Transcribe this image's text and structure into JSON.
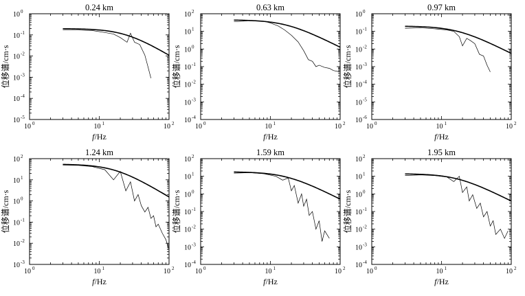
{
  "chart_data": [
    {
      "type": "line",
      "title": "0.24 km",
      "xlabel_var": "f",
      "xlabel_unit": "/Hz",
      "ylabel": "位移谱/cm·s",
      "xscale": "log",
      "yscale": "log",
      "xlim": [
        1,
        100
      ],
      "ylim": [
        1e-05,
        1
      ],
      "xticks": [
        1,
        10,
        100
      ],
      "yticks": [
        1e-05,
        0.0001,
        0.001,
        0.01,
        0.1,
        1
      ],
      "grid": false,
      "series": [
        {
          "role": "theoretical",
          "fc": 24,
          "omega0": 0.2,
          "x_range": [
            3,
            100
          ]
        },
        {
          "role": "observed",
          "x": [
            3,
            5,
            8,
            12,
            16,
            20,
            25,
            28,
            32,
            38,
            45,
            50,
            55
          ],
          "y": [
            0.17,
            0.17,
            0.16,
            0.13,
            0.11,
            0.075,
            0.045,
            0.12,
            0.045,
            0.035,
            0.011,
            0.003,
            0.0009
          ]
        }
      ]
    },
    {
      "type": "line",
      "title": "0.63 km",
      "xlabel_var": "f",
      "xlabel_unit": "/Hz",
      "ylabel": "位移谱/cm·s",
      "xscale": "log",
      "yscale": "log",
      "xlim": [
        1,
        100
      ],
      "ylim": [
        0.0001,
        100
      ],
      "xticks": [
        1,
        10,
        100
      ],
      "yticks": [
        0.0001,
        0.001,
        0.01,
        0.1,
        1,
        10,
        100
      ],
      "grid": false,
      "series": [
        {
          "role": "theoretical",
          "fc": 17,
          "omega0": 45,
          "x_range": [
            3,
            100
          ]
        },
        {
          "role": "observed",
          "x": [
            3,
            5,
            8,
            10,
            13,
            16,
            20,
            25,
            30,
            35,
            40,
            45,
            50,
            60,
            70,
            80,
            100
          ],
          "y": [
            35,
            40,
            38,
            30,
            20,
            12,
            6,
            2.5,
            0.8,
            0.25,
            0.2,
            0.1,
            0.12,
            0.09,
            0.08,
            0.06,
            0.05
          ]
        }
      ]
    },
    {
      "type": "line",
      "title": "0.97 km",
      "xlabel_var": "f",
      "xlabel_unit": "/Hz",
      "ylabel": "位移谱/cm·s",
      "xscale": "log",
      "yscale": "log",
      "xlim": [
        1,
        100
      ],
      "ylim": [
        1e-06,
        1
      ],
      "xticks": [
        1,
        10,
        100
      ],
      "yticks": [
        1e-06,
        1e-05,
        0.0001,
        0.001,
        0.01,
        0.1,
        1
      ],
      "grid": false,
      "series": [
        {
          "role": "theoretical",
          "fc": 17,
          "omega0": 0.2,
          "x_range": [
            3,
            100
          ]
        },
        {
          "role": "observed",
          "x": [
            3,
            5,
            8,
            12,
            15,
            18,
            20,
            23,
            26,
            30,
            35,
            40,
            45,
            50
          ],
          "y": [
            0.15,
            0.16,
            0.14,
            0.12,
            0.1,
            0.05,
            0.015,
            0.04,
            0.03,
            0.02,
            0.005,
            0.004,
            0.0012,
            0.0005
          ]
        }
      ]
    },
    {
      "type": "line",
      "title": "1.24 km",
      "xlabel_var": "f",
      "xlabel_unit": "/Hz",
      "ylabel": "位移谱/cm·s",
      "xscale": "log",
      "yscale": "log",
      "xlim": [
        1,
        100
      ],
      "ylim": [
        0.001,
        100
      ],
      "xticks": [
        1,
        10,
        100
      ],
      "yticks": [
        0.001,
        0.01,
        0.1,
        1,
        10,
        100
      ],
      "grid": false,
      "series": [
        {
          "role": "theoretical",
          "fc": 17,
          "omega0": 55,
          "x_range": [
            3,
            100
          ]
        },
        {
          "role": "observed",
          "x": [
            3,
            5,
            8,
            12,
            16,
            20,
            24,
            28,
            32,
            36,
            40,
            45,
            50,
            55,
            60,
            65,
            70,
            80,
            90,
            100
          ],
          "y": [
            50,
            48,
            42,
            30,
            10,
            25,
            3,
            8,
            1,
            2,
            0.6,
            0.3,
            0.5,
            0.15,
            0.2,
            0.06,
            0.08,
            0.03,
            0.015,
            0.005
          ]
        }
      ]
    },
    {
      "type": "line",
      "title": "1.59 km",
      "xlabel_var": "f",
      "xlabel_unit": "/Hz",
      "ylabel": "位移谱/cm·s",
      "xscale": "log",
      "yscale": "log",
      "xlim": [
        1,
        100
      ],
      "ylim": [
        0.0001,
        100
      ],
      "xticks": [
        1,
        10,
        100
      ],
      "yticks": [
        0.0001,
        0.001,
        0.01,
        0.1,
        1,
        10,
        100
      ],
      "grid": false,
      "series": [
        {
          "role": "theoretical",
          "fc": 17,
          "omega0": 18,
          "x_range": [
            3,
            100
          ]
        },
        {
          "role": "observed",
          "x": [
            3,
            5,
            8,
            12,
            15,
            18,
            20,
            22,
            25,
            28,
            30,
            33,
            36,
            40,
            45,
            50,
            55,
            60,
            70
          ],
          "y": [
            15,
            16,
            14,
            10,
            6,
            8,
            1.5,
            3,
            0.3,
            1,
            0.2,
            0.5,
            0.06,
            0.1,
            0.01,
            0.03,
            0.002,
            0.008,
            0.003
          ]
        }
      ]
    },
    {
      "type": "line",
      "title": "1.95 km",
      "xlabel_var": "f",
      "xlabel_unit": "/Hz",
      "ylabel": "位移谱/cm·s",
      "xscale": "log",
      "yscale": "log",
      "xlim": [
        1,
        100
      ],
      "ylim": [
        0.0001,
        100
      ],
      "xticks": [
        1,
        10,
        100
      ],
      "yticks": [
        0.0001,
        0.001,
        0.01,
        0.1,
        1,
        10,
        100
      ],
      "grid": false,
      "series": [
        {
          "role": "theoretical",
          "fc": 17,
          "omega0": 14,
          "x_range": [
            3,
            100
          ]
        },
        {
          "role": "observed",
          "x": [
            3,
            5,
            8,
            12,
            15,
            18,
            20,
            23,
            25,
            28,
            32,
            36,
            40,
            45,
            50,
            55,
            60,
            70,
            80,
            90
          ],
          "y": [
            11,
            12,
            11,
            9,
            5,
            10,
            1.2,
            2.5,
            0.4,
            0.9,
            0.15,
            0.3,
            0.05,
            0.1,
            0.015,
            0.03,
            0.005,
            0.01,
            0.003,
            0.008
          ]
        }
      ]
    }
  ]
}
